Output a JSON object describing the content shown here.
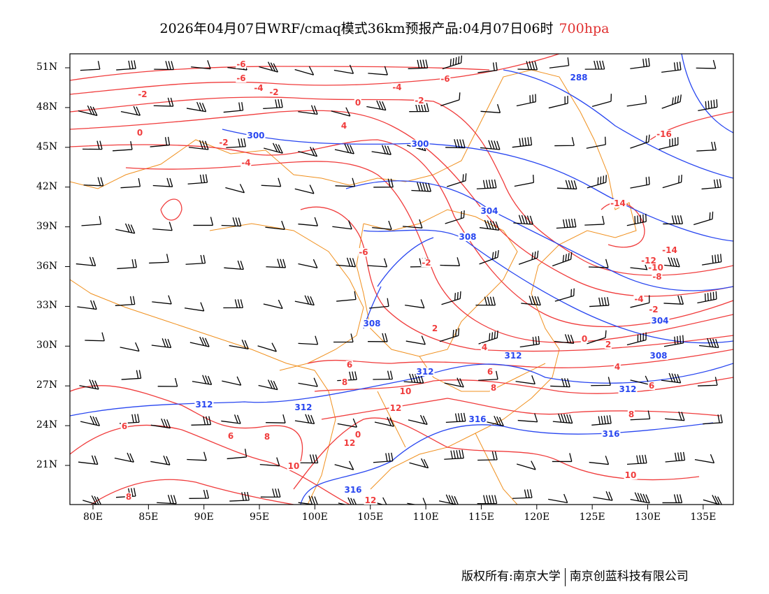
{
  "title": {
    "text": "2026年04月07日WRF/cmaq模式36km预报产品:04月07日06时",
    "level": "700hpa"
  },
  "lat_ticks": [
    "51N",
    "48N",
    "45N",
    "42N",
    "39N",
    "36N",
    "33N",
    "30N",
    "27N",
    "24N",
    "21N"
  ],
  "lon_ticks": [
    "80E",
    "85E",
    "90E",
    "95E",
    "100E",
    "105E",
    "110E",
    "115E",
    "120E",
    "125E",
    "130E",
    "135E"
  ],
  "colors": {
    "temperature": "#f03c3c",
    "height": "#2846f0",
    "border": "#f0901e",
    "wind": "#000000"
  },
  "contour_labels": {
    "temperature": [
      "-6",
      "-6",
      "-4",
      "-2",
      "-2",
      "-4",
      "-6",
      "-2",
      "0",
      "0",
      "-2",
      "-4",
      "4",
      "-16",
      "-14",
      "-14",
      "-12",
      "-10",
      "-8",
      "-4",
      "-2",
      "0",
      "2",
      "4",
      "-2",
      "-6",
      "2",
      "4",
      "6",
      "8",
      "10",
      "12",
      "6",
      "8",
      "0",
      "12",
      "12",
      "10",
      "8",
      "6",
      "6",
      "8",
      "10",
      "8",
      "6"
    ],
    "height": [
      "288",
      "300",
      "300",
      "304",
      "308",
      "308",
      "312",
      "312",
      "312",
      "312",
      "316",
      "316",
      "316",
      "304",
      "308",
      "312"
    ]
  },
  "footer": {
    "left": "版权所有:南京大学",
    "right": "南京创蓝科技有限公司"
  }
}
